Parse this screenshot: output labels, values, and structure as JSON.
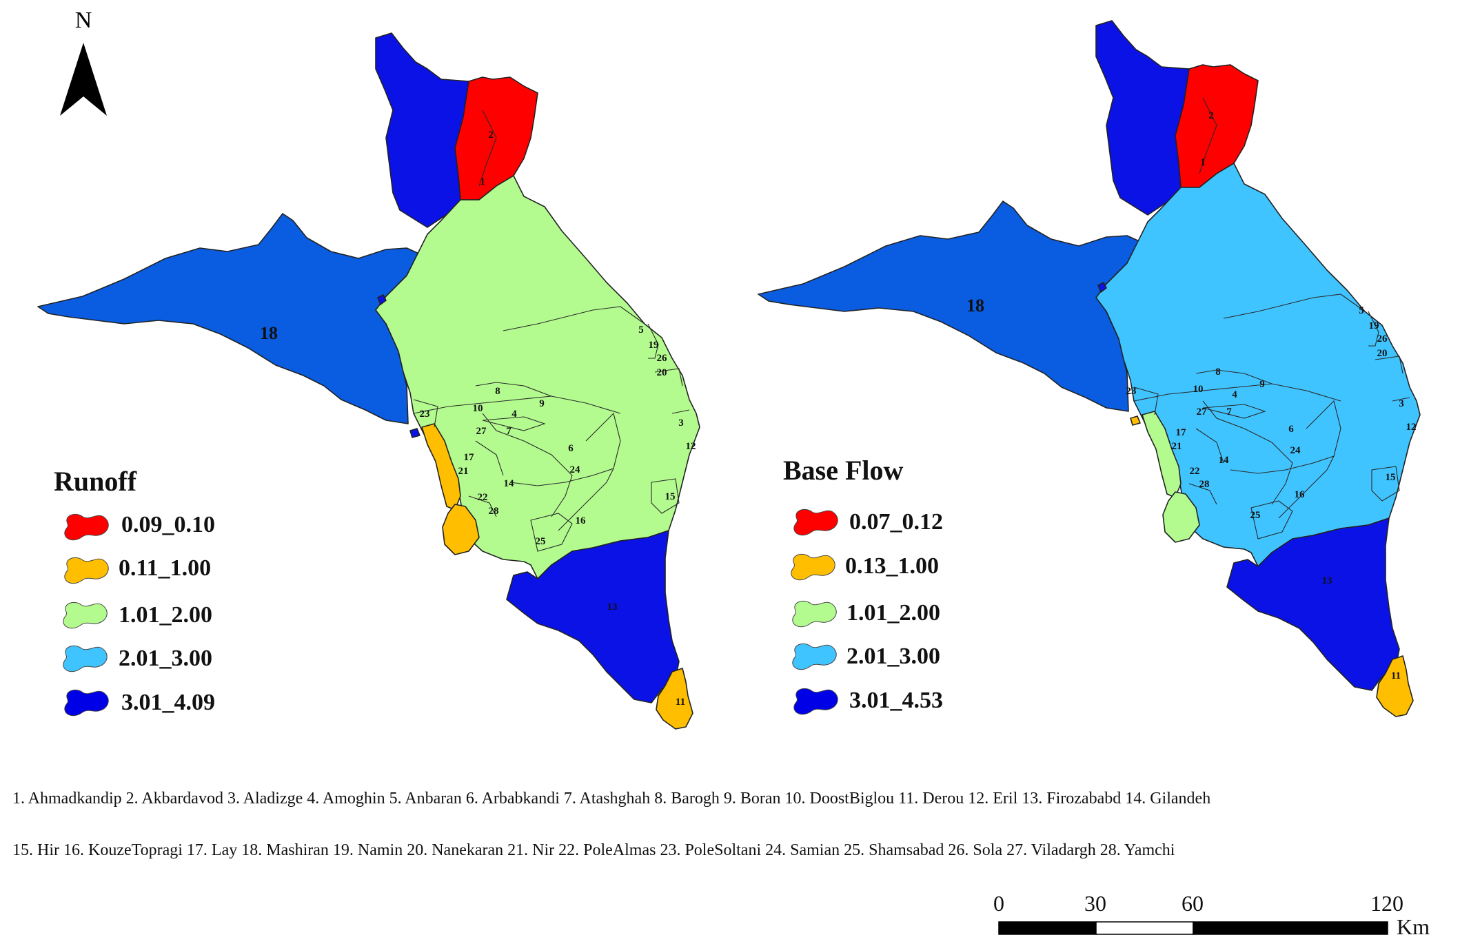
{
  "north_label": "N",
  "maps": [
    {
      "id": "runoff",
      "legend_title": "Runoff",
      "legend": [
        {
          "range": "0.09_0.10",
          "color": "#ff0000"
        },
        {
          "range": "0.11_1.00",
          "color": "#ffbf00"
        },
        {
          "range": "1.01_2.00",
          "color": "#b3fb8f"
        },
        {
          "range": "2.01_3.00",
          "color": "#40c4ff"
        },
        {
          "range": "3.01_4.09",
          "color": "#0000e6"
        }
      ]
    },
    {
      "id": "baseflow",
      "legend_title": "Base Flow",
      "legend": [
        {
          "range": "0.07_0.12",
          "color": "#ff0000"
        },
        {
          "range": "0.13_1.00",
          "color": "#ffbf00"
        },
        {
          "range": "1.01_2.00",
          "color": "#b3fb8f"
        },
        {
          "range": "2.01_3.00",
          "color": "#40c4ff"
        },
        {
          "range": "3.01_4.53",
          "color": "#0000e6"
        }
      ]
    }
  ],
  "map_labels": [
    "1",
    "2",
    "3",
    "4",
    "5",
    "6",
    "7",
    "8",
    "9",
    "10",
    "11",
    "12",
    "13",
    "14",
    "15",
    "16",
    "17",
    "18",
    "19",
    "20",
    "21",
    "22",
    "23",
    "24",
    "25",
    "26",
    "27",
    "28"
  ],
  "subbasin_names_line1": "1. Ahmadkandip 2. Akbardavod 3. Aladizge 4. Amoghin 5. Anbaran 6. Arbabkandi 7. Atashghah 8. Barogh 9. Boran 10. DoostBiglou 11. Derou 12. Eril 13. Firozababd 14. Gilandeh",
  "subbasin_names_line2": "15. Hir 16. KouzeTopragi 17. Lay 18. Mashiran 19. Namin 20. Nanekaran 21. Nir 22. PoleAlmas 23. PoleSoltani 24. Samian 25. Shamsabad  26. Sola 27. Viladargh 28. Yamchi",
  "scale_bar": {
    "ticks": [
      "0",
      "30",
      "60",
      "120"
    ],
    "unit": "Km"
  },
  "region_colors": {
    "red": "#ff0000",
    "orange": "#ffbf00",
    "light_green": "#b3fb8f",
    "light_blue": "#40c4ff",
    "blue_18": "#0a5ce0",
    "dark_blue": "#0a12e6"
  }
}
